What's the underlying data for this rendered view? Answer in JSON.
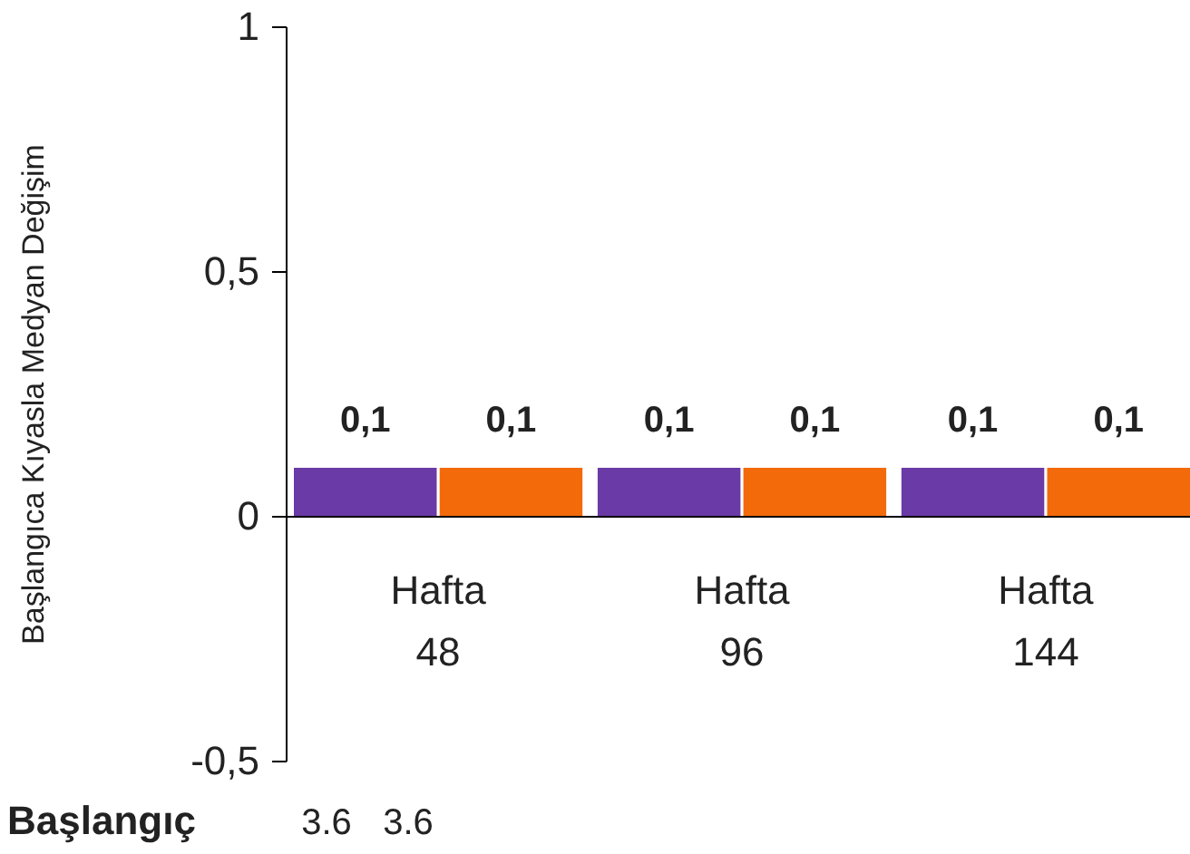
{
  "chart_data": {
    "type": "bar",
    "ylabel": "Başlangıca Kıyasla Medyan Değişim",
    "categories": [
      "Hafta 48",
      "Hafta 96",
      "Hafta 144"
    ],
    "series": [
      {
        "color": "#6a3aa6",
        "values": [
          0.1,
          0.1,
          0.1
        ],
        "value_labels": [
          "0,1",
          "0,1",
          "0,1"
        ]
      },
      {
        "color": "#f26a0a",
        "values": [
          0.1,
          0.1,
          0.1
        ],
        "value_labels": [
          "0,1",
          "0,1",
          "0,1"
        ]
      }
    ],
    "ylim": [
      -0.5,
      1
    ],
    "yticks": [
      {
        "value": -0.5,
        "label": "-0,5"
      },
      0,
      {
        "value": 0.5,
        "label": "0,5"
      },
      1
    ],
    "annotations": [
      "Başlangıç",
      "3.6",
      "3.6"
    ]
  }
}
